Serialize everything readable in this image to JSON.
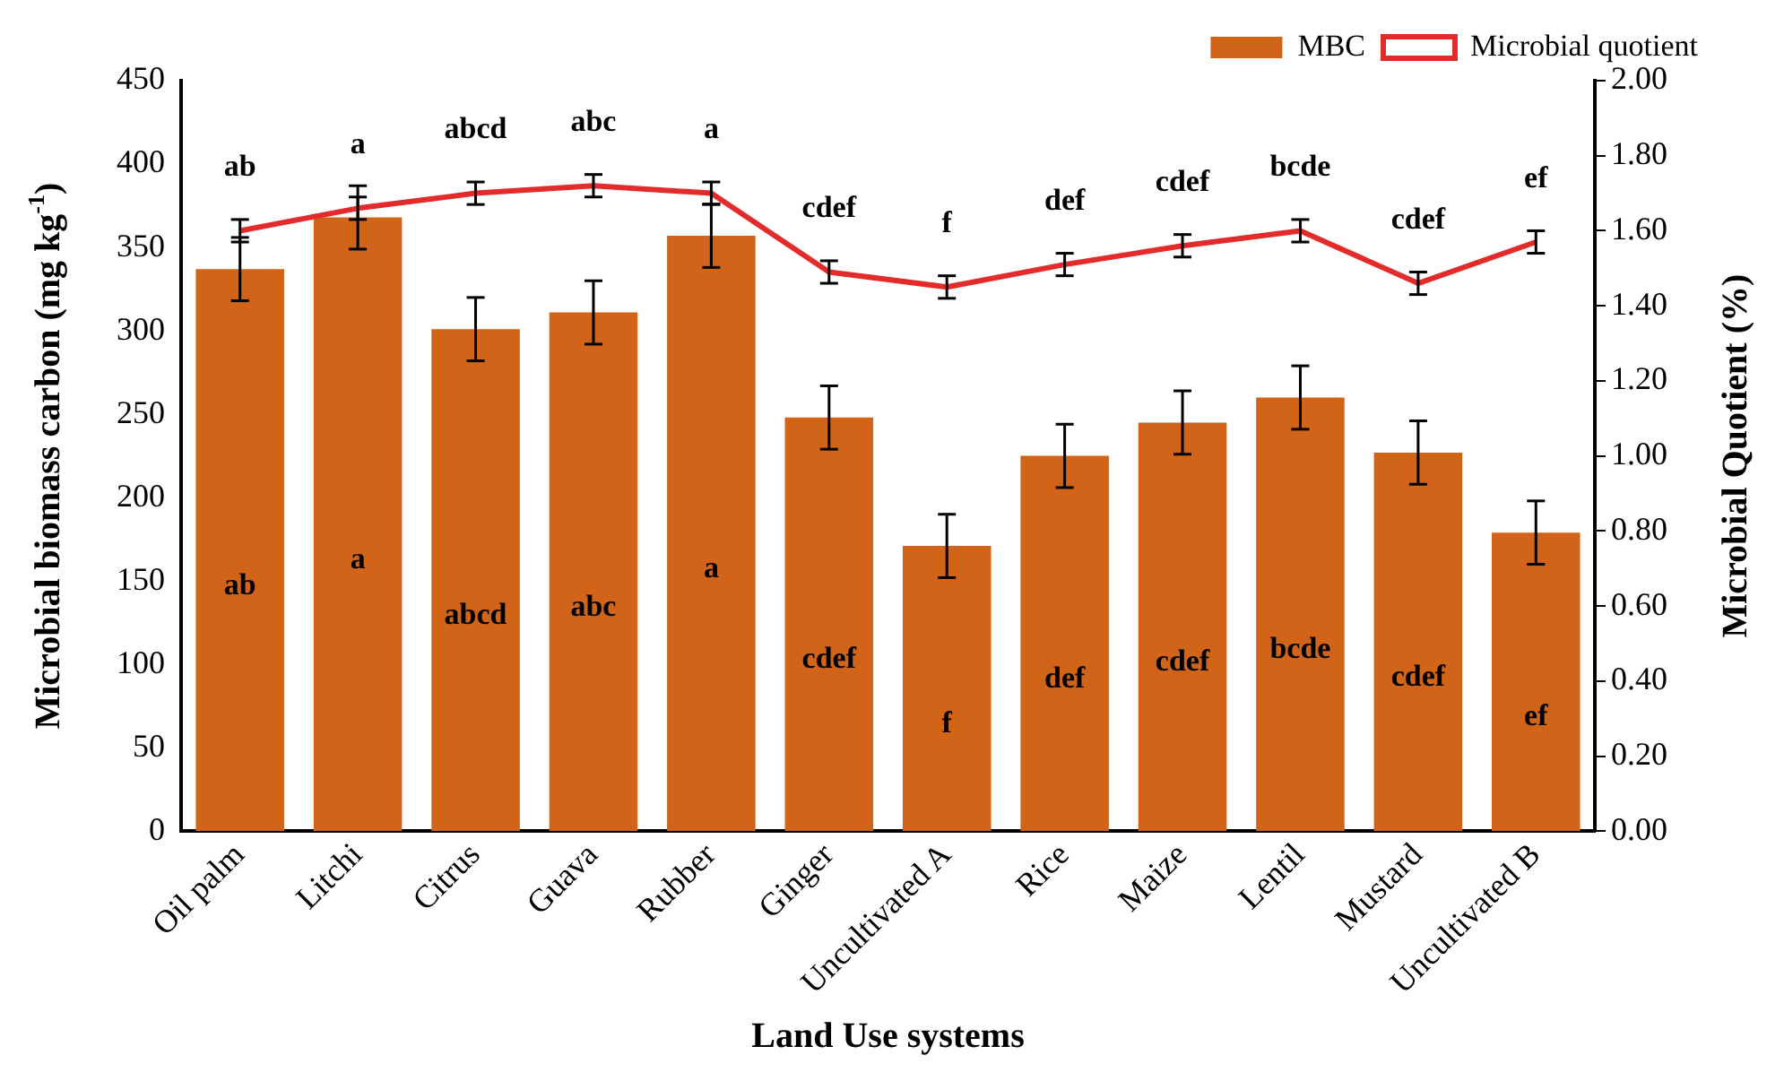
{
  "chart_data": {
    "type": "bar",
    "xlabel": "Land Use systems",
    "ylabel": "Microbial biomass carbon (mg kg$^{-1}$)",
    "y2label": "Microbial Quotient (%)",
    "categories": [
      "Oil palm",
      "Litchi",
      "Citrus",
      "Guava",
      "Rubber",
      "Ginger",
      "Uncultivated A",
      "Rice",
      "Maize",
      "Lentil",
      "Mustard",
      "Uncultivated B"
    ],
    "series": [
      {
        "name": "MBC",
        "color": "#d2641a",
        "values": [
          337,
          368,
          301,
          311,
          357,
          248,
          171,
          225,
          245,
          260,
          227,
          179
        ],
        "errors": [
          19,
          19,
          19,
          19,
          19,
          19,
          19,
          19,
          19,
          19,
          19,
          19
        ]
      },
      {
        "name": "Microbial quotient",
        "type": "line",
        "axis": "y2",
        "color": "#e32b2b",
        "values": [
          1.6,
          1.66,
          1.7,
          1.72,
          1.7,
          1.49,
          1.45,
          1.51,
          1.56,
          1.6,
          1.46,
          1.57
        ],
        "errors": [
          0.03,
          0.03,
          0.03,
          0.03,
          0.03,
          0.03,
          0.03,
          0.03,
          0.03,
          0.03,
          0.03,
          0.03
        ]
      }
    ],
    "ylim": [
      0,
      450
    ],
    "yticks": [
      0,
      50,
      100,
      150,
      200,
      250,
      300,
      350,
      400,
      450
    ],
    "y2lim": [
      0,
      2
    ],
    "y2ticks": [
      {
        "value": 0,
        "label": "0.00"
      },
      {
        "value": 0.2,
        "label": "0.20"
      },
      {
        "value": 0.4,
        "label": "0.40"
      },
      {
        "value": 0.6,
        "label": "0.60"
      },
      {
        "value": 0.8,
        "label": "0.80"
      },
      {
        "value": 1,
        "label": "1.00"
      },
      {
        "value": 1.2,
        "label": "1.20"
      },
      {
        "value": 1.4,
        "label": "1.40"
      },
      {
        "value": 1.6,
        "label": "1.60"
      },
      {
        "value": 1.8,
        "label": "1.80"
      },
      {
        "value": 2,
        "label": "2.00"
      }
    ],
    "grid": false,
    "legend": "top right",
    "annotations": [
      "ab",
      "a",
      "abcd",
      "abc",
      "a",
      "cdef",
      "f",
      "def",
      "cdef",
      "bcde",
      "cdef",
      "ef",
      "ab",
      "a",
      "abcd",
      "abc",
      "a",
      "cdef",
      "f",
      "def",
      "cdef",
      "bcde",
      "cdef",
      "ef"
    ]
  }
}
